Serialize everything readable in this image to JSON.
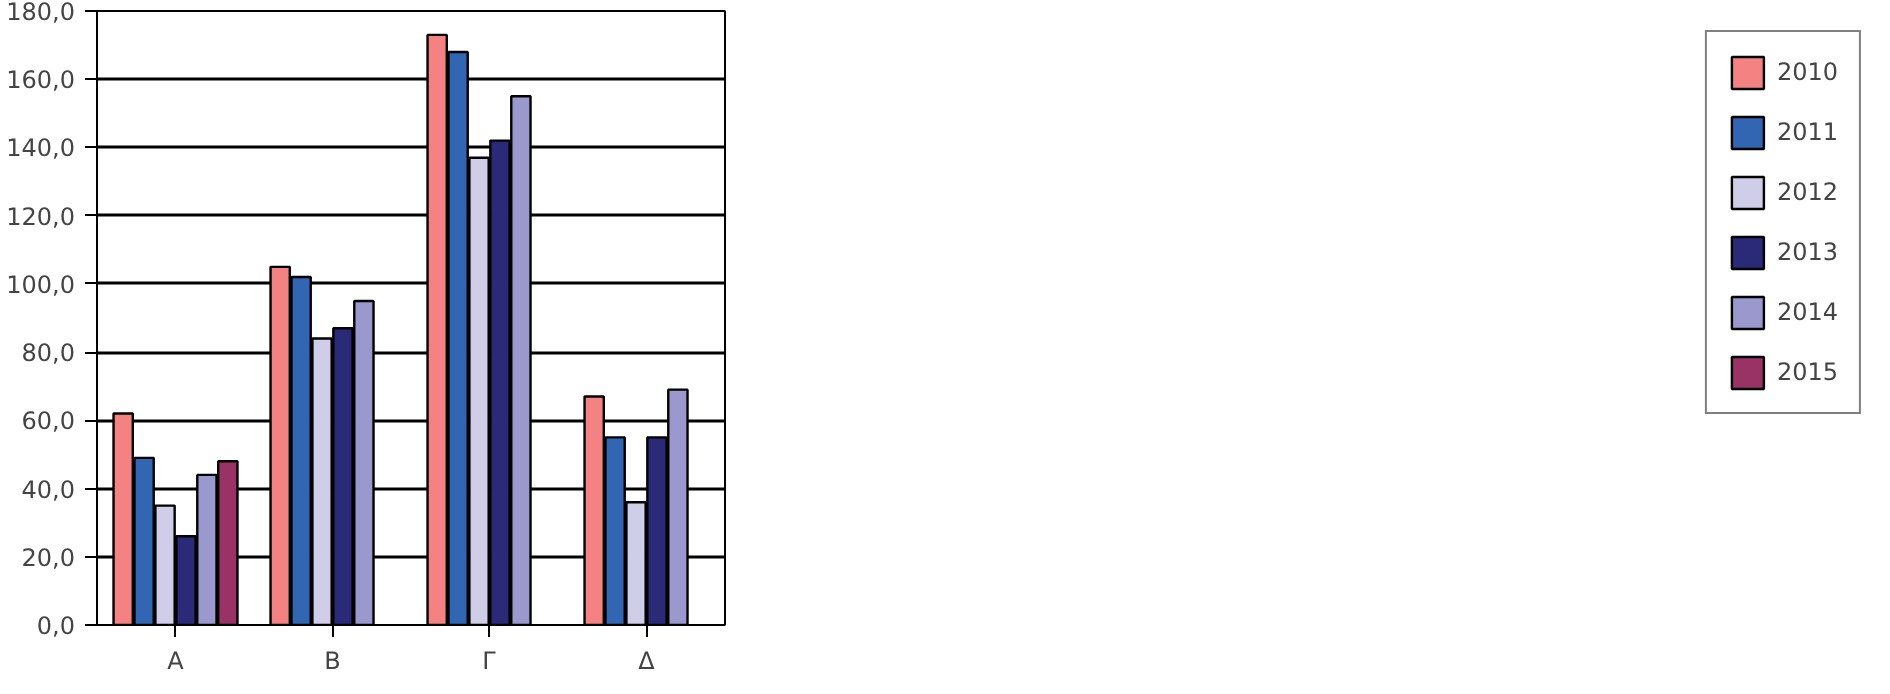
{
  "chart_data": {
    "type": "bar",
    "categories": [
      "А",
      "В",
      "Г",
      "Δ"
    ],
    "series": [
      {
        "name": "2010",
        "color": "#f48282",
        "values": [
          62,
          105,
          173,
          67
        ]
      },
      {
        "name": "2011",
        "color": "#3366b2",
        "values": [
          49,
          102,
          168,
          55
        ]
      },
      {
        "name": "2012",
        "color": "#d0cde8",
        "values": [
          35,
          84,
          137,
          36
        ]
      },
      {
        "name": "2013",
        "color": "#2a2a78",
        "values": [
          26,
          87,
          142,
          55
        ]
      },
      {
        "name": "2014",
        "color": "#9a98cc",
        "values": [
          44,
          95,
          155,
          69
        ]
      },
      {
        "name": "2015",
        "color": "#993366",
        "values": [
          48,
          null,
          null,
          null
        ]
      }
    ],
    "ylim": [
      0,
      180
    ],
    "yticks": [
      {
        "value": 0,
        "label": "0,0"
      },
      {
        "value": 20,
        "label": "20,0"
      },
      {
        "value": 40,
        "label": "40,0"
      },
      {
        "value": 60,
        "label": "60,0"
      },
      {
        "value": 80,
        "label": "80,0"
      },
      {
        "value": 100,
        "label": "100,0"
      },
      {
        "value": 120,
        "label": "120,0"
      },
      {
        "value": 140,
        "label": "140,0"
      },
      {
        "value": 160,
        "label": "160,0"
      },
      {
        "value": 180,
        "label": "180,0"
      }
    ],
    "grid": "y",
    "legend": "right"
  }
}
